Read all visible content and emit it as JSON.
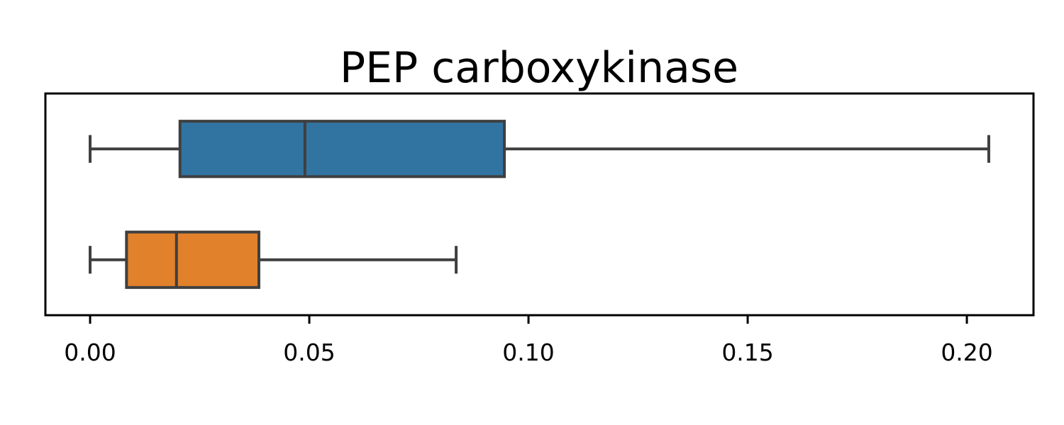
{
  "chart_data": {
    "type": "box",
    "orientation": "horizontal",
    "title": "PEP carboxykinase",
    "xlabel": "",
    "ylabel": "",
    "xlim": [
      -0.0102,
      0.2152
    ],
    "xticks": [
      0.0,
      0.05,
      0.1,
      0.15,
      0.2
    ],
    "xtick_labels": [
      "0.00",
      "0.05",
      "0.10",
      "0.15",
      "0.20"
    ],
    "grid": false,
    "series": [
      {
        "whisker_low": 0.0,
        "q1": 0.0205,
        "median": 0.049,
        "q3": 0.0945,
        "whisker_high": 0.205,
        "color": "#3274a1"
      },
      {
        "whisker_low": 0.0,
        "q1": 0.0083,
        "median": 0.0197,
        "q3": 0.0385,
        "whisker_high": 0.0835,
        "color": "#e1812c"
      }
    ],
    "line_color": "#3f3f3f"
  }
}
